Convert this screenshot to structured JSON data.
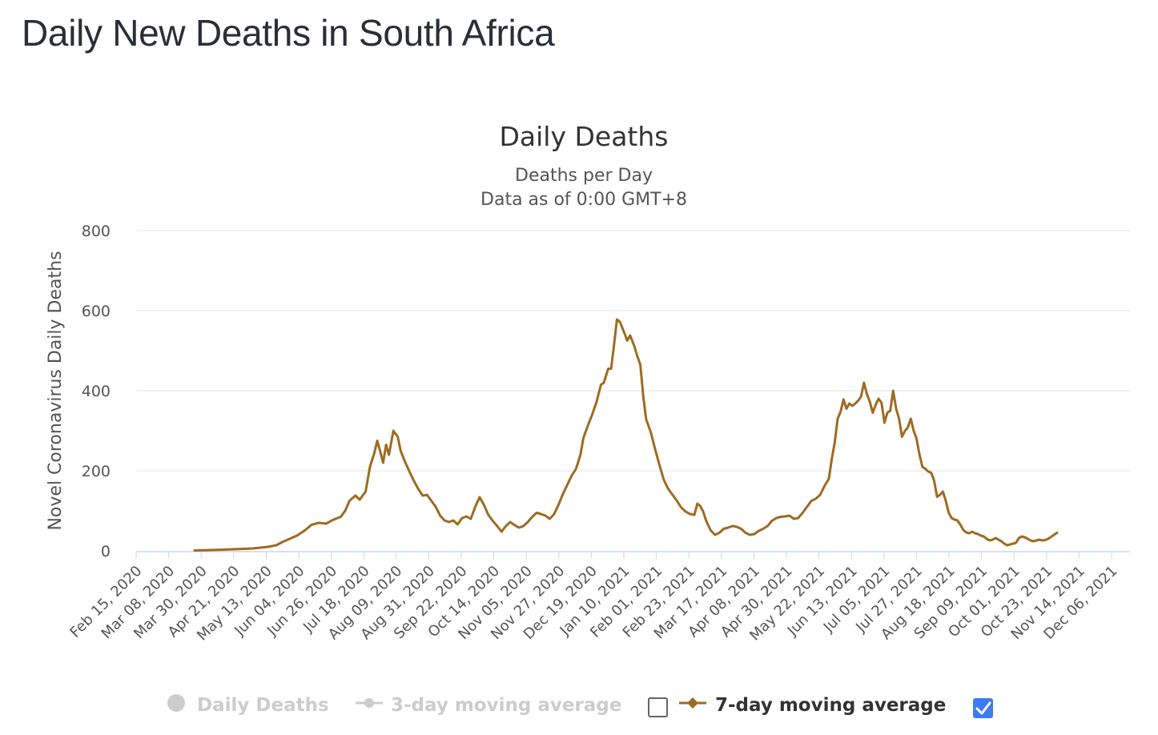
{
  "page": {
    "title": "Daily New Deaths in South Africa"
  },
  "colors": {
    "series": "#9d6b22",
    "grid": "#e6e6e6",
    "axis": "#ccd6eb",
    "checkbox": "#3b7cf0",
    "inactive": "#cccccc"
  },
  "chart_data": {
    "type": "line",
    "title": "Daily Deaths",
    "subtitle_lines": [
      "Deaths per Day",
      "Data as of 0:00 GMT+8"
    ],
    "ylabel": "Novel Coronavirus Daily Deaths",
    "ylim": [
      0,
      800
    ],
    "yticks": [
      "0",
      "200",
      "400",
      "600",
      "800"
    ],
    "xtick_labels": [
      "Feb 15, 2020",
      "Mar 08, 2020",
      "Mar 30, 2020",
      "Apr 21, 2020",
      "May 13, 2020",
      "Jun 04, 2020",
      "Jun 26, 2020",
      "Jul 18, 2020",
      "Aug 09, 2020",
      "Aug 31, 2020",
      "Sep 22, 2020",
      "Oct 14, 2020",
      "Nov 05, 2020",
      "Nov 27, 2020",
      "Dec 19, 2020",
      "Jan 10, 2021",
      "Feb 01, 2021",
      "Feb 23, 2021",
      "Mar 17, 2021",
      "Apr 08, 2021",
      "Apr 30, 2021",
      "May 22, 2021",
      "Jun 13, 2021",
      "Jul 05, 2021",
      "Jul 27, 2021",
      "Aug 18, 2021",
      "Sep 09, 2021",
      "Oct 01, 2021",
      "Oct 23, 2021",
      "Nov 14, 2021",
      "Dec 06, 2021"
    ],
    "x_days_total": 680,
    "series": [
      {
        "name": "7-day moving average",
        "visible": true,
        "points": [
          [
            40,
            1
          ],
          [
            60,
            3
          ],
          [
            80,
            6
          ],
          [
            90,
            10
          ],
          [
            96,
            14
          ],
          [
            100,
            22
          ],
          [
            105,
            30
          ],
          [
            110,
            38
          ],
          [
            115,
            50
          ],
          [
            120,
            65
          ],
          [
            125,
            70
          ],
          [
            130,
            68
          ],
          [
            135,
            78
          ],
          [
            140,
            85
          ],
          [
            143,
            100
          ],
          [
            146,
            125
          ],
          [
            150,
            138
          ],
          [
            153,
            128
          ],
          [
            157,
            148
          ],
          [
            160,
            210
          ],
          [
            163,
            245
          ],
          [
            165,
            275
          ],
          [
            167,
            248
          ],
          [
            169,
            220
          ],
          [
            171,
            265
          ],
          [
            173,
            240
          ],
          [
            176,
            300
          ],
          [
            179,
            285
          ],
          [
            181,
            250
          ],
          [
            184,
            222
          ],
          [
            187,
            198
          ],
          [
            190,
            175
          ],
          [
            193,
            155
          ],
          [
            196,
            138
          ],
          [
            199,
            140
          ],
          [
            202,
            125
          ],
          [
            205,
            110
          ],
          [
            208,
            88
          ],
          [
            211,
            76
          ],
          [
            214,
            72
          ],
          [
            217,
            76
          ],
          [
            220,
            66
          ],
          [
            223,
            82
          ],
          [
            226,
            86
          ],
          [
            229,
            80
          ],
          [
            232,
            110
          ],
          [
            235,
            134
          ],
          [
            238,
            115
          ],
          [
            241,
            90
          ],
          [
            244,
            75
          ],
          [
            247,
            62
          ],
          [
            250,
            48
          ],
          [
            253,
            62
          ],
          [
            256,
            72
          ],
          [
            259,
            64
          ],
          [
            262,
            58
          ],
          [
            265,
            62
          ],
          [
            268,
            72
          ],
          [
            271,
            85
          ],
          [
            274,
            95
          ],
          [
            277,
            92
          ],
          [
            280,
            88
          ],
          [
            283,
            80
          ],
          [
            286,
            92
          ],
          [
            289,
            115
          ],
          [
            292,
            142
          ],
          [
            295,
            165
          ],
          [
            298,
            188
          ],
          [
            301,
            205
          ],
          [
            304,
            240
          ],
          [
            306,
            282
          ],
          [
            309,
            312
          ],
          [
            312,
            340
          ],
          [
            315,
            372
          ],
          [
            318,
            415
          ],
          [
            320,
            420
          ],
          [
            323,
            455
          ],
          [
            325,
            455
          ],
          [
            327,
            515
          ],
          [
            329,
            578
          ],
          [
            331,
            572
          ],
          [
            334,
            545
          ],
          [
            336,
            525
          ],
          [
            338,
            538
          ],
          [
            341,
            510
          ],
          [
            343,
            485
          ],
          [
            345,
            465
          ],
          [
            347,
            385
          ],
          [
            349,
            328
          ],
          [
            352,
            298
          ],
          [
            355,
            255
          ],
          [
            358,
            215
          ],
          [
            361,
            178
          ],
          [
            364,
            155
          ],
          [
            367,
            140
          ],
          [
            370,
            125
          ],
          [
            373,
            108
          ],
          [
            376,
            98
          ],
          [
            379,
            92
          ],
          [
            382,
            90
          ],
          [
            384,
            118
          ],
          [
            386,
            112
          ],
          [
            388,
            98
          ],
          [
            390,
            75
          ],
          [
            393,
            52
          ],
          [
            396,
            40
          ],
          [
            399,
            45
          ],
          [
            402,
            55
          ],
          [
            405,
            58
          ],
          [
            408,
            62
          ],
          [
            411,
            60
          ],
          [
            414,
            55
          ],
          [
            417,
            45
          ],
          [
            420,
            40
          ],
          [
            423,
            42
          ],
          [
            426,
            50
          ],
          [
            429,
            55
          ],
          [
            432,
            62
          ],
          [
            435,
            75
          ],
          [
            438,
            82
          ],
          [
            441,
            85
          ],
          [
            444,
            86
          ],
          [
            447,
            88
          ],
          [
            450,
            80
          ],
          [
            453,
            82
          ],
          [
            456,
            95
          ],
          [
            459,
            110
          ],
          [
            462,
            125
          ],
          [
            465,
            130
          ],
          [
            468,
            140
          ],
          [
            471,
            162
          ],
          [
            474,
            180
          ],
          [
            476,
            230
          ],
          [
            478,
            270
          ],
          [
            480,
            330
          ],
          [
            482,
            348
          ],
          [
            484,
            378
          ],
          [
            486,
            355
          ],
          [
            488,
            368
          ],
          [
            490,
            362
          ],
          [
            492,
            368
          ],
          [
            494,
            375
          ],
          [
            496,
            385
          ],
          [
            498,
            420
          ],
          [
            500,
            392
          ],
          [
            502,
            372
          ],
          [
            504,
            345
          ],
          [
            506,
            365
          ],
          [
            508,
            380
          ],
          [
            510,
            370
          ],
          [
            512,
            320
          ],
          [
            514,
            345
          ],
          [
            516,
            350
          ],
          [
            518,
            400
          ],
          [
            520,
            355
          ],
          [
            522,
            330
          ],
          [
            524,
            285
          ],
          [
            526,
            300
          ],
          [
            528,
            308
          ],
          [
            530,
            330
          ],
          [
            532,
            300
          ],
          [
            534,
            280
          ],
          [
            536,
            240
          ],
          [
            538,
            210
          ],
          [
            540,
            205
          ],
          [
            542,
            198
          ],
          [
            544,
            195
          ],
          [
            546,
            175
          ],
          [
            548,
            135
          ],
          [
            550,
            140
          ],
          [
            552,
            148
          ],
          [
            554,
            125
          ],
          [
            556,
            95
          ],
          [
            558,
            82
          ],
          [
            560,
            78
          ],
          [
            562,
            76
          ],
          [
            564,
            65
          ],
          [
            566,
            52
          ],
          [
            568,
            46
          ],
          [
            570,
            44
          ],
          [
            572,
            48
          ],
          [
            574,
            44
          ],
          [
            576,
            42
          ],
          [
            578,
            38
          ],
          [
            580,
            36
          ],
          [
            582,
            30
          ],
          [
            584,
            26
          ],
          [
            586,
            28
          ],
          [
            588,
            32
          ],
          [
            590,
            28
          ],
          [
            592,
            24
          ],
          [
            594,
            18
          ],
          [
            596,
            14
          ],
          [
            598,
            16
          ],
          [
            600,
            18
          ],
          [
            602,
            20
          ],
          [
            604,
            32
          ],
          [
            606,
            36
          ],
          [
            608,
            34
          ],
          [
            610,
            30
          ],
          [
            612,
            26
          ],
          [
            614,
            24
          ],
          [
            616,
            26
          ],
          [
            618,
            28
          ],
          [
            620,
            26
          ],
          [
            622,
            27
          ],
          [
            624,
            30
          ],
          [
            626,
            35
          ],
          [
            628,
            40
          ],
          [
            630,
            45
          ]
        ]
      }
    ]
  },
  "legend": {
    "items": [
      {
        "label": "Daily Deaths",
        "active": false
      },
      {
        "label": "3-day moving average",
        "active": false
      },
      {
        "label": "7-day moving average",
        "active": true
      }
    ]
  }
}
